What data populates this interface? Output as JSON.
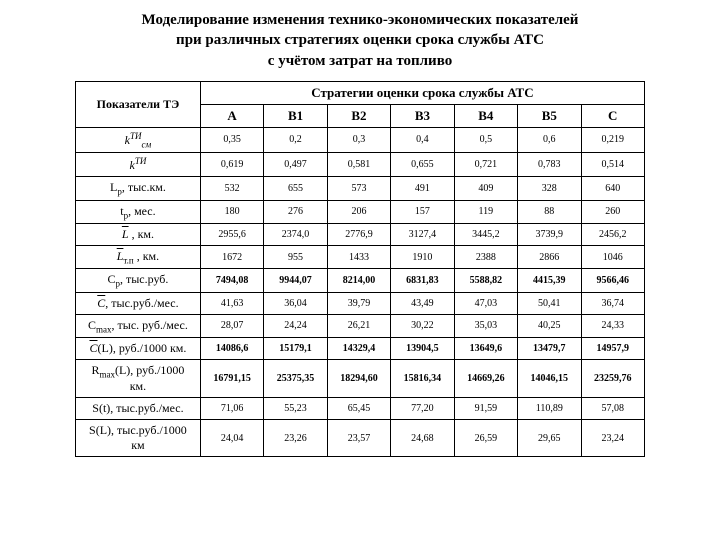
{
  "title_l1": "Моделирование изменения технико-экономических показателей",
  "title_l2": "при различных стратегиях оценки срока службы АТС",
  "title_l3": "с учётом затрат на топливо",
  "header_rowlabel": "Показатели ТЭ",
  "header_strategies": "Стратегии оценки срока службы АТС",
  "cols": [
    "А",
    "В1",
    "В2",
    "В3",
    "В4",
    "В5",
    "С"
  ],
  "rows": [
    {
      "label": "k_TI_sm",
      "html": true,
      "bold": false,
      "cells": [
        "0,35",
        "0,2",
        "0,3",
        "0,4",
        "0,5",
        "0,6",
        "0,219"
      ]
    },
    {
      "label": "k_TI",
      "html": true,
      "bold": false,
      "cells": [
        "0,619",
        "0,497",
        "0,581",
        "0,655",
        "0,721",
        "0,783",
        "0,514"
      ]
    },
    {
      "label": "L<span class=\"sub\">p</span>, тыс.км.",
      "html": true,
      "bold": false,
      "cells": [
        "532",
        "655",
        "573",
        "491",
        "409",
        "328",
        "640"
      ]
    },
    {
      "label": "t<span class=\"sub\">p</span>, мес.",
      "html": true,
      "bold": false,
      "cells": [
        "180",
        "276",
        "206",
        "157",
        "119",
        "88",
        "260"
      ]
    },
    {
      "label": "<span class=\"bar\">L</span>&nbsp;, км.",
      "html": true,
      "bold": false,
      "cells": [
        "2955,6",
        "2374,0",
        "2776,9",
        "3127,4",
        "3445,2",
        "3739,9",
        "2456,2"
      ]
    },
    {
      "label": "<span class=\"bar\">L</span><span class=\"sub\">т.п</span> , км.",
      "html": true,
      "bold": false,
      "cells": [
        "1672",
        "955",
        "1433",
        "1910",
        "2388",
        "2866",
        "1046"
      ]
    },
    {
      "label": "С<span class=\"sub\">р</span>, тыс.руб.",
      "html": true,
      "bold": true,
      "cells": [
        "7494,08",
        "9944,07",
        "8214,00",
        "6831,83",
        "5588,82",
        "4415,39",
        "9566,46"
      ]
    },
    {
      "label": "<span class=\"bar\">C</span>, тыс.руб./мес.",
      "html": true,
      "bold": false,
      "cells": [
        "41,63",
        "36,04",
        "39,79",
        "43,49",
        "47,03",
        "50,41",
        "36,74"
      ]
    },
    {
      "label": "С<span class=\"sub\">max</span>, тыс. руб./мес.",
      "html": true,
      "bold": false,
      "cells": [
        "28,07",
        "24,24",
        "26,21",
        "30,22",
        "35,03",
        "40,25",
        "24,33"
      ]
    },
    {
      "label": "<span class=\"bar\">C</span>(L), руб./1000 км.",
      "html": true,
      "bold": true,
      "cells": [
        "14086,6",
        "15179,1",
        "14329,4",
        "13904,5",
        "13649,6",
        "13479,7",
        "14957,9"
      ]
    },
    {
      "label": "R<span class=\"sub\">max</span>(L), руб./1000 км.",
      "html": true,
      "bold": true,
      "cells": [
        "16791,15",
        "25375,35",
        "18294,60",
        "15816,34",
        "14669,26",
        "14046,15",
        "23259,76"
      ]
    },
    {
      "label": "S(t), тыс.руб./мес.",
      "html": true,
      "bold": false,
      "cells": [
        "71,06",
        "55,23",
        "65,45",
        "77,20",
        "91,59",
        "110,89",
        "57,08"
      ]
    },
    {
      "label": "S(L), тыс.руб./1000 км",
      "html": true,
      "bold": false,
      "cells": [
        "24,04",
        "23,26",
        "23,57",
        "24,68",
        "26,59",
        "29,65",
        "23,24"
      ]
    }
  ]
}
